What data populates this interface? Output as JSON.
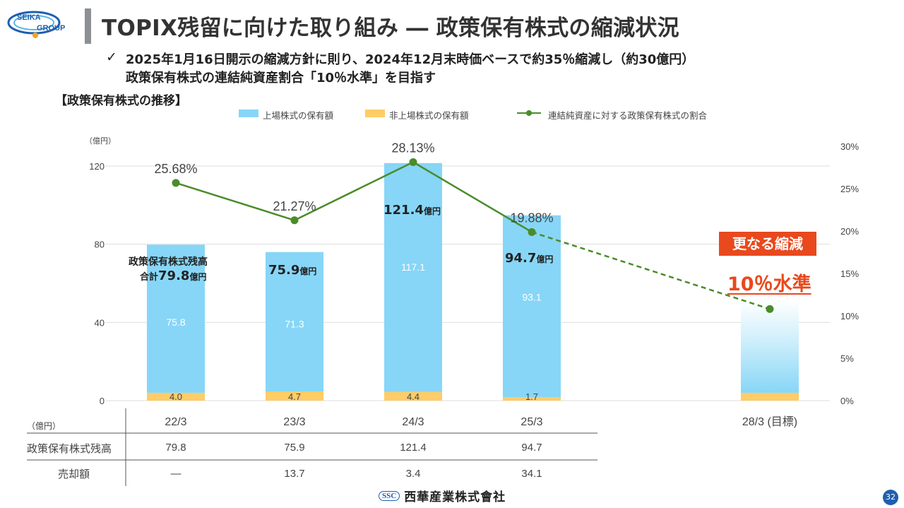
{
  "header": {
    "logo_text_top": "SEIKA",
    "logo_text_bottom": "GROUP",
    "title": "TOPIX残留に向けた取り組み ― 政策保有株式の縮減状況"
  },
  "bullet": {
    "check": "✓",
    "line1": "2025年1月16日開示の縮減方針に則り、2024年12月末時価ベースで約35％縮減し（約30億円）",
    "line2": "政策保有株式の連結純資産割合「10％水準」を目指す"
  },
  "section_title": "【政策保有株式の推移】",
  "legend": {
    "listed": "上場株式の保有額",
    "unlisted": "非上場株式の保有額",
    "ratio": "連結純資産に対する政策保有株式の割合"
  },
  "colors": {
    "listed": "#87d6f7",
    "unlisted": "#ffcc66",
    "ratio_line": "#4a8c2a",
    "accent": "#e8491d",
    "title_bar": "#8c8f94",
    "page_num": "#1f5fae"
  },
  "annotations": {
    "total_label": "政策保有株式残高",
    "total_prefix": "合計",
    "total_value": "79.8",
    "unit": "億円",
    "bar2_total": "75.9",
    "bar3_total": "121.4",
    "bar4_total": "94.7",
    "callout": "更なる縮減",
    "target_level": "10％水準"
  },
  "chart_data": {
    "type": "bar",
    "stacked": true,
    "categories": [
      "22/3",
      "23/3",
      "24/3",
      "25/3",
      "28/3 (目標)"
    ],
    "series": [
      {
        "name": "上場株式の保有額",
        "values": [
          75.8,
          71.3,
          117.1,
          93.1,
          null
        ],
        "labels": [
          "75.8",
          "71.3",
          "117.1",
          "93.1",
          ""
        ]
      },
      {
        "name": "非上場株式の保有額",
        "values": [
          4.0,
          4.7,
          4.4,
          1.7,
          null
        ],
        "labels": [
          "4.0",
          "4.7",
          "4.4",
          "1.7",
          ""
        ]
      },
      {
        "name": "連結純資産に対する政策保有株式の割合",
        "axis": "right",
        "values": [
          25.68,
          21.27,
          28.13,
          19.88,
          10.8
        ],
        "labels": [
          "25.68%",
          "21.27%",
          "28.13%",
          "19.88%",
          ""
        ]
      }
    ],
    "target_bar": {
      "listed": 40,
      "unlisted": 4
    },
    "y_left": {
      "unit": "（億円）",
      "ylim": [
        0,
        120
      ],
      "ticks": [
        "0",
        "40",
        "80",
        "120"
      ]
    },
    "y_right": {
      "ylim": [
        0,
        30
      ],
      "ticks": [
        "0%",
        "5%",
        "10%",
        "15%",
        "20%",
        "25%",
        "30%"
      ]
    },
    "grid": true,
    "legend_position": "top"
  },
  "table": {
    "unit": "（億円）",
    "rows": [
      {
        "label": "政策保有株式残高",
        "values": [
          "79.8",
          "75.9",
          "121.4",
          "94.7"
        ]
      },
      {
        "label": "売却額",
        "values": [
          "―",
          "13.7",
          "3.4",
          "34.1"
        ]
      }
    ]
  },
  "footer": {
    "company_mark": "SSC",
    "company_name": "西華産業株式會社",
    "page_number": "32"
  }
}
